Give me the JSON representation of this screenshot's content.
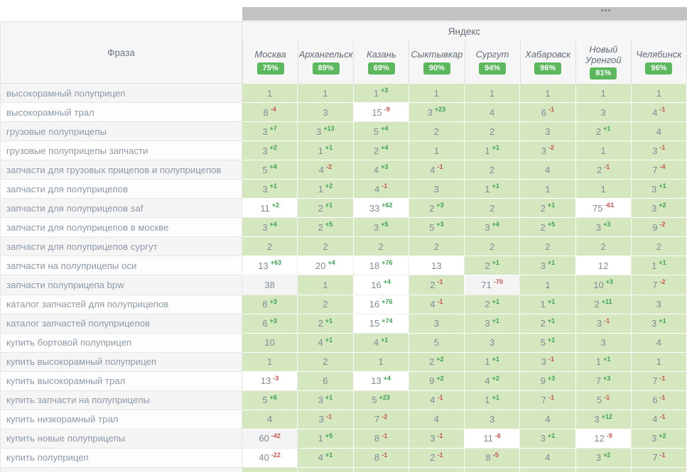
{
  "panel": {
    "more_label": "..."
  },
  "header": {
    "phrase_label": "Фраза",
    "engine_label": "Яндекс"
  },
  "columns": [
    {
      "city": "Москва",
      "visibility": "75%"
    },
    {
      "city": "Архангельск",
      "visibility": "89%"
    },
    {
      "city": "Казань",
      "visibility": "69%"
    },
    {
      "city": "Сыктывкар",
      "visibility": "90%"
    },
    {
      "city": "Сургут",
      "visibility": "94%"
    },
    {
      "city": "Хабаровск",
      "visibility": "96%"
    },
    {
      "city": "Новый Уренгой",
      "visibility": "81%"
    },
    {
      "city": "Челябинск",
      "visibility": "96%"
    }
  ],
  "colors": {
    "top10_bg": "#d5e7bf",
    "badge_green": "#5cb85c",
    "delta_up": "#3aa24b",
    "delta_down": "#c9534f",
    "bar_gray": "#c2c2c2"
  },
  "rows": [
    {
      "phrase": "высокорамный полуприцеп",
      "cells": [
        [
          "1",
          ""
        ],
        [
          "1",
          ""
        ],
        [
          "1",
          "+3"
        ],
        [
          "1",
          ""
        ],
        [
          "1",
          ""
        ],
        [
          "1",
          ""
        ],
        [
          "1",
          ""
        ],
        [
          "1",
          ""
        ]
      ]
    },
    {
      "phrase": "высокорамный трал",
      "cells": [
        [
          "8",
          "-4"
        ],
        [
          "3",
          ""
        ],
        [
          "15",
          "-9"
        ],
        [
          "3",
          "+23"
        ],
        [
          "4",
          ""
        ],
        [
          "6",
          "-1"
        ],
        [
          "3",
          ""
        ],
        [
          "4",
          "-1"
        ]
      ]
    },
    {
      "phrase": "грузовые полуприцепы",
      "cells": [
        [
          "3",
          "+7"
        ],
        [
          "3",
          "+13"
        ],
        [
          "5",
          "+4"
        ],
        [
          "2",
          ""
        ],
        [
          "2",
          ""
        ],
        [
          "3",
          ""
        ],
        [
          "2",
          "+1"
        ],
        [
          "4",
          ""
        ]
      ]
    },
    {
      "phrase": "грузовые полуприцепы запчасти",
      "cells": [
        [
          "3",
          "+2"
        ],
        [
          "1",
          "+1"
        ],
        [
          "2",
          "+4"
        ],
        [
          "1",
          ""
        ],
        [
          "1",
          "+1"
        ],
        [
          "3",
          "-2"
        ],
        [
          "1",
          ""
        ],
        [
          "3",
          "-1"
        ]
      ]
    },
    {
      "phrase": "запчасти для грузовых прицепов и полуприцепов",
      "cells": [
        [
          "5",
          "+4"
        ],
        [
          "4",
          "-2"
        ],
        [
          "4",
          "+3"
        ],
        [
          "4",
          "-1"
        ],
        [
          "2",
          ""
        ],
        [
          "4",
          ""
        ],
        [
          "2",
          "-1"
        ],
        [
          "7",
          "-4"
        ]
      ]
    },
    {
      "phrase": "запчасти для полуприцепов",
      "cells": [
        [
          "3",
          "+1"
        ],
        [
          "1",
          "+2"
        ],
        [
          "4",
          "-1"
        ],
        [
          "3",
          ""
        ],
        [
          "1",
          "+1"
        ],
        [
          "1",
          ""
        ],
        [
          "1",
          ""
        ],
        [
          "3",
          "+1"
        ]
      ]
    },
    {
      "phrase": "запчасти для полуприцепов saf",
      "cells": [
        [
          "11",
          "+2"
        ],
        [
          "2",
          "+1"
        ],
        [
          "33",
          "+62"
        ],
        [
          "2",
          "+3"
        ],
        [
          "2",
          ""
        ],
        [
          "2",
          "+1"
        ],
        [
          "75",
          "-61"
        ],
        [
          "3",
          "+2"
        ]
      ]
    },
    {
      "phrase": "запчасти для полуприцепов в москве",
      "cells": [
        [
          "3",
          "+4"
        ],
        [
          "2",
          "+5"
        ],
        [
          "3",
          "+5"
        ],
        [
          "5",
          "+3"
        ],
        [
          "3",
          "+4"
        ],
        [
          "2",
          "+5"
        ],
        [
          "3",
          "+3"
        ],
        [
          "9",
          "-2"
        ]
      ]
    },
    {
      "phrase": "запчасти для полуприцепов сургут",
      "cells": [
        [
          "2",
          ""
        ],
        [
          "2",
          ""
        ],
        [
          "2",
          ""
        ],
        [
          "2",
          ""
        ],
        [
          "2",
          ""
        ],
        [
          "2",
          ""
        ],
        [
          "2",
          ""
        ],
        [
          "2",
          ""
        ]
      ]
    },
    {
      "phrase": "запчасти на полуприцепы оси",
      "cells": [
        [
          "13",
          "+63"
        ],
        [
          "20",
          "+4"
        ],
        [
          "18",
          "+76"
        ],
        [
          "13",
          ""
        ],
        [
          "2",
          "+1"
        ],
        [
          "3",
          "+1"
        ],
        [
          "12",
          ""
        ],
        [
          "1",
          "+1"
        ]
      ]
    },
    {
      "phrase": "запчасти полуприцепа bpw",
      "cells": [
        [
          "38",
          "",
          true
        ],
        [
          "1",
          ""
        ],
        [
          "16",
          "+4"
        ],
        [
          "2",
          "-1"
        ],
        [
          "71",
          "-70",
          true
        ],
        [
          "1",
          ""
        ],
        [
          "10",
          "+3"
        ],
        [
          "7",
          "-2"
        ]
      ]
    },
    {
      "phrase": "каталог запчастей для полуприцепов",
      "cells": [
        [
          "8",
          "+3"
        ],
        [
          "2",
          ""
        ],
        [
          "16",
          "+76"
        ],
        [
          "4",
          "-1"
        ],
        [
          "2",
          "+1"
        ],
        [
          "1",
          "+1"
        ],
        [
          "2",
          "+11"
        ],
        [
          "3",
          ""
        ]
      ]
    },
    {
      "phrase": "каталог запчастей полуприцепов",
      "cells": [
        [
          "6",
          "+3"
        ],
        [
          "2",
          "+1"
        ],
        [
          "15",
          "+74"
        ],
        [
          "3",
          ""
        ],
        [
          "3",
          "+1"
        ],
        [
          "2",
          "+1"
        ],
        [
          "3",
          "-1"
        ],
        [
          "3",
          "+1"
        ]
      ]
    },
    {
      "phrase": "купить бортовой полуприцеп",
      "cells": [
        [
          "10",
          ""
        ],
        [
          "4",
          "+1"
        ],
        [
          "4",
          "+1"
        ],
        [
          "5",
          ""
        ],
        [
          "3",
          ""
        ],
        [
          "5",
          "+1"
        ],
        [
          "3",
          ""
        ],
        [
          "4",
          ""
        ]
      ]
    },
    {
      "phrase": "купить высокорамный полуприцеп",
      "cells": [
        [
          "1",
          ""
        ],
        [
          "2",
          ""
        ],
        [
          "1",
          ""
        ],
        [
          "2",
          "+2"
        ],
        [
          "1",
          "+1"
        ],
        [
          "3",
          "-1"
        ],
        [
          "1",
          "+1"
        ],
        [
          "1",
          ""
        ]
      ]
    },
    {
      "phrase": "купить высокорамный трал",
      "cells": [
        [
          "13",
          "-3"
        ],
        [
          "6",
          ""
        ],
        [
          "13",
          "+4"
        ],
        [
          "9",
          "+2"
        ],
        [
          "4",
          "+2"
        ],
        [
          "9",
          "+3"
        ],
        [
          "7",
          "+3"
        ],
        [
          "7",
          "-1"
        ]
      ]
    },
    {
      "phrase": "купить запчасти на полуприцепы",
      "cells": [
        [
          "5",
          "+6"
        ],
        [
          "3",
          "+1"
        ],
        [
          "5",
          "+23"
        ],
        [
          "4",
          "-1"
        ],
        [
          "1",
          "+1"
        ],
        [
          "7",
          "-1"
        ],
        [
          "5",
          "-1"
        ],
        [
          "6",
          "-1"
        ]
      ]
    },
    {
      "phrase": "купить низкорамный трал",
      "cells": [
        [
          "4",
          ""
        ],
        [
          "3",
          "-1"
        ],
        [
          "7",
          "-2"
        ],
        [
          "4",
          ""
        ],
        [
          "3",
          ""
        ],
        [
          "4",
          ""
        ],
        [
          "3",
          "+12"
        ],
        [
          "4",
          "-1"
        ]
      ]
    },
    {
      "phrase": "купить новые полуприцепы",
      "cells": [
        [
          "60",
          "-42",
          true
        ],
        [
          "1",
          "+5"
        ],
        [
          "8",
          "-1"
        ],
        [
          "3",
          "-1"
        ],
        [
          "11",
          "-6"
        ],
        [
          "3",
          "+1"
        ],
        [
          "12",
          "-9"
        ],
        [
          "3",
          "+2"
        ]
      ]
    },
    {
      "phrase": "купить полуприцеп",
      "cells": [
        [
          "40",
          "-22"
        ],
        [
          "4",
          "+1"
        ],
        [
          "8",
          "-1"
        ],
        [
          "2",
          "-1"
        ],
        [
          "8",
          "-5"
        ],
        [
          "4",
          ""
        ],
        [
          "3",
          "+2"
        ],
        [
          "7",
          "-1"
        ]
      ]
    },
    {
      "phrase": "",
      "cells": [
        [
          "",
          ""
        ],
        [
          "",
          ""
        ],
        [
          "",
          ""
        ],
        [
          "",
          ""
        ],
        [
          "",
          ""
        ],
        [
          "",
          ""
        ],
        [
          "",
          ""
        ],
        [
          "",
          ""
        ]
      ]
    }
  ]
}
